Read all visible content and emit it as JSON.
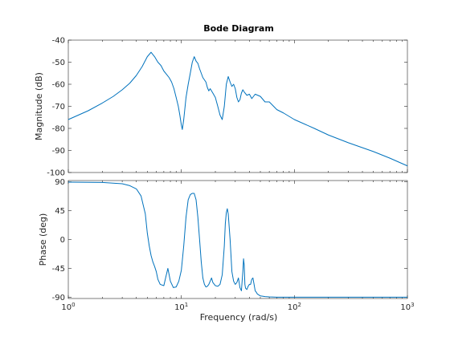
{
  "chart_data": {
    "type": "line",
    "title": "Bode Diagram",
    "xlabel": "Frequency  (rad/s)",
    "xscale": "log",
    "xlim": [
      1,
      1000
    ],
    "x_ticks": [
      {
        "value": 1,
        "base": "10",
        "exp": "0"
      },
      {
        "value": 10,
        "base": "10",
        "exp": "1"
      },
      {
        "value": 100,
        "base": "10",
        "exp": "2"
      },
      {
        "value": 1000,
        "base": "10",
        "exp": "3"
      }
    ],
    "grid": false,
    "line_color": "#0072bd",
    "panels": [
      {
        "name": "magnitude",
        "ylabel": "Magnitude (dB)",
        "ylim": [
          -100,
          -40
        ],
        "yticks": [
          -100,
          -90,
          -80,
          -70,
          -60,
          -50,
          -40
        ],
        "series": [
          {
            "x": [
              1,
              1.5,
              2,
              2.5,
              3,
              3.5,
              4,
              4.5,
              5,
              5.4,
              5.8,
              6.2,
              6.6,
              7,
              7.4,
              7.8,
              8.2,
              8.6,
              9,
              9.4,
              9.7,
              10,
              10.2,
              10.5,
              11,
              11.5,
              12,
              12.5,
              13,
              13.5,
              14,
              14.5,
              15,
              15.5,
              16,
              16.5,
              17,
              17.5,
              18,
              19,
              20,
              21,
              22,
              23,
              24,
              25,
              26,
              27,
              28,
              29,
              30,
              31,
              32,
              33,
              34,
              35,
              36,
              38,
              40,
              42,
              45,
              50,
              55,
              60,
              70,
              80,
              100,
              150,
              200,
              300,
              500,
              700,
              1000
            ],
            "y": [
              -76,
              -72,
              -68.5,
              -65.5,
              -62.5,
              -59.5,
              -56,
              -52,
              -47.5,
              -45.5,
              -47.5,
              -50,
              -51.5,
              -54,
              -55.5,
              -57,
              -59,
              -62,
              -66,
              -70,
              -74,
              -78.5,
              -80.5,
              -76,
              -66,
              -60,
              -55,
              -50,
              -47.5,
              -49.5,
              -50.5,
              -53,
              -55,
              -57,
              -58,
              -59,
              -61.5,
              -63,
              -62,
              -64,
              -66,
              -70,
              -74,
              -76,
              -70,
              -60,
              -56.5,
              -59,
              -61,
              -60,
              -62,
              -66,
              -68,
              -67,
              -64,
              -62.5,
              -63.5,
              -65,
              -64.5,
              -66.5,
              -64.5,
              -65.5,
              -68,
              -68,
              -71.5,
              -73,
              -76,
              -80,
              -83,
              -86.5,
              -90.5,
              -93.5,
              -97
            ]
          }
        ]
      },
      {
        "name": "phase",
        "ylabel": "Phase (deg)",
        "ylim": [
          -92,
          92
        ],
        "yticks": [
          -90,
          -45,
          0,
          45,
          90
        ],
        "series": [
          {
            "x": [
              1,
              2,
              3,
              3.5,
              4,
              4.4,
              4.8,
              5.0,
              5.2,
              5.4,
              5.6,
              5.8,
              6,
              6.2,
              6.5,
              7,
              7.3,
              7.6,
              8,
              8.5,
              9,
              9.5,
              10,
              10.5,
              11,
              11.5,
              12,
              12.5,
              13,
              13.5,
              14,
              14.5,
              15,
              15.5,
              16,
              16.5,
              17,
              17.5,
              18,
              18.5,
              19,
              20,
              21,
              22,
              23,
              24,
              24.5,
              25,
              25.5,
              26,
              27,
              28,
              29,
              30,
              31,
              32,
              33,
              34,
              35,
              35.5,
              36,
              36.5,
              37,
              38,
              39,
              40,
              41,
              42,
              43,
              44,
              45,
              46,
              47,
              48,
              50,
              55,
              60,
              70,
              80,
              100,
              200,
              500,
              1000
            ],
            "y": [
              89.5,
              89,
              87,
              84,
              79,
              68,
              40,
              10,
              -10,
              -25,
              -35,
              -42,
              -50,
              -62,
              -70,
              -72,
              -58,
              -45,
              -65,
              -75,
              -74,
              -65,
              -48,
              -10,
              35,
              62,
              70,
              72,
              72,
              62,
              35,
              0,
              -35,
              -60,
              -70,
              -74,
              -73,
              -70,
              -65,
              -60,
              -67,
              -72,
              -73,
              -70,
              -55,
              -10,
              25,
              42,
              48,
              40,
              0,
              -50,
              -65,
              -70,
              -67,
              -60,
              -75,
              -80,
              -50,
              -30,
              -40,
              -70,
              -76,
              -78,
              -73,
              -70,
              -70,
              -62,
              -60,
              -70,
              -80,
              -82,
              -85,
              -86,
              -88,
              -89,
              -89.5,
              -90,
              -90,
              -90,
              -90,
              -90,
              -90
            ]
          }
        ]
      }
    ]
  }
}
